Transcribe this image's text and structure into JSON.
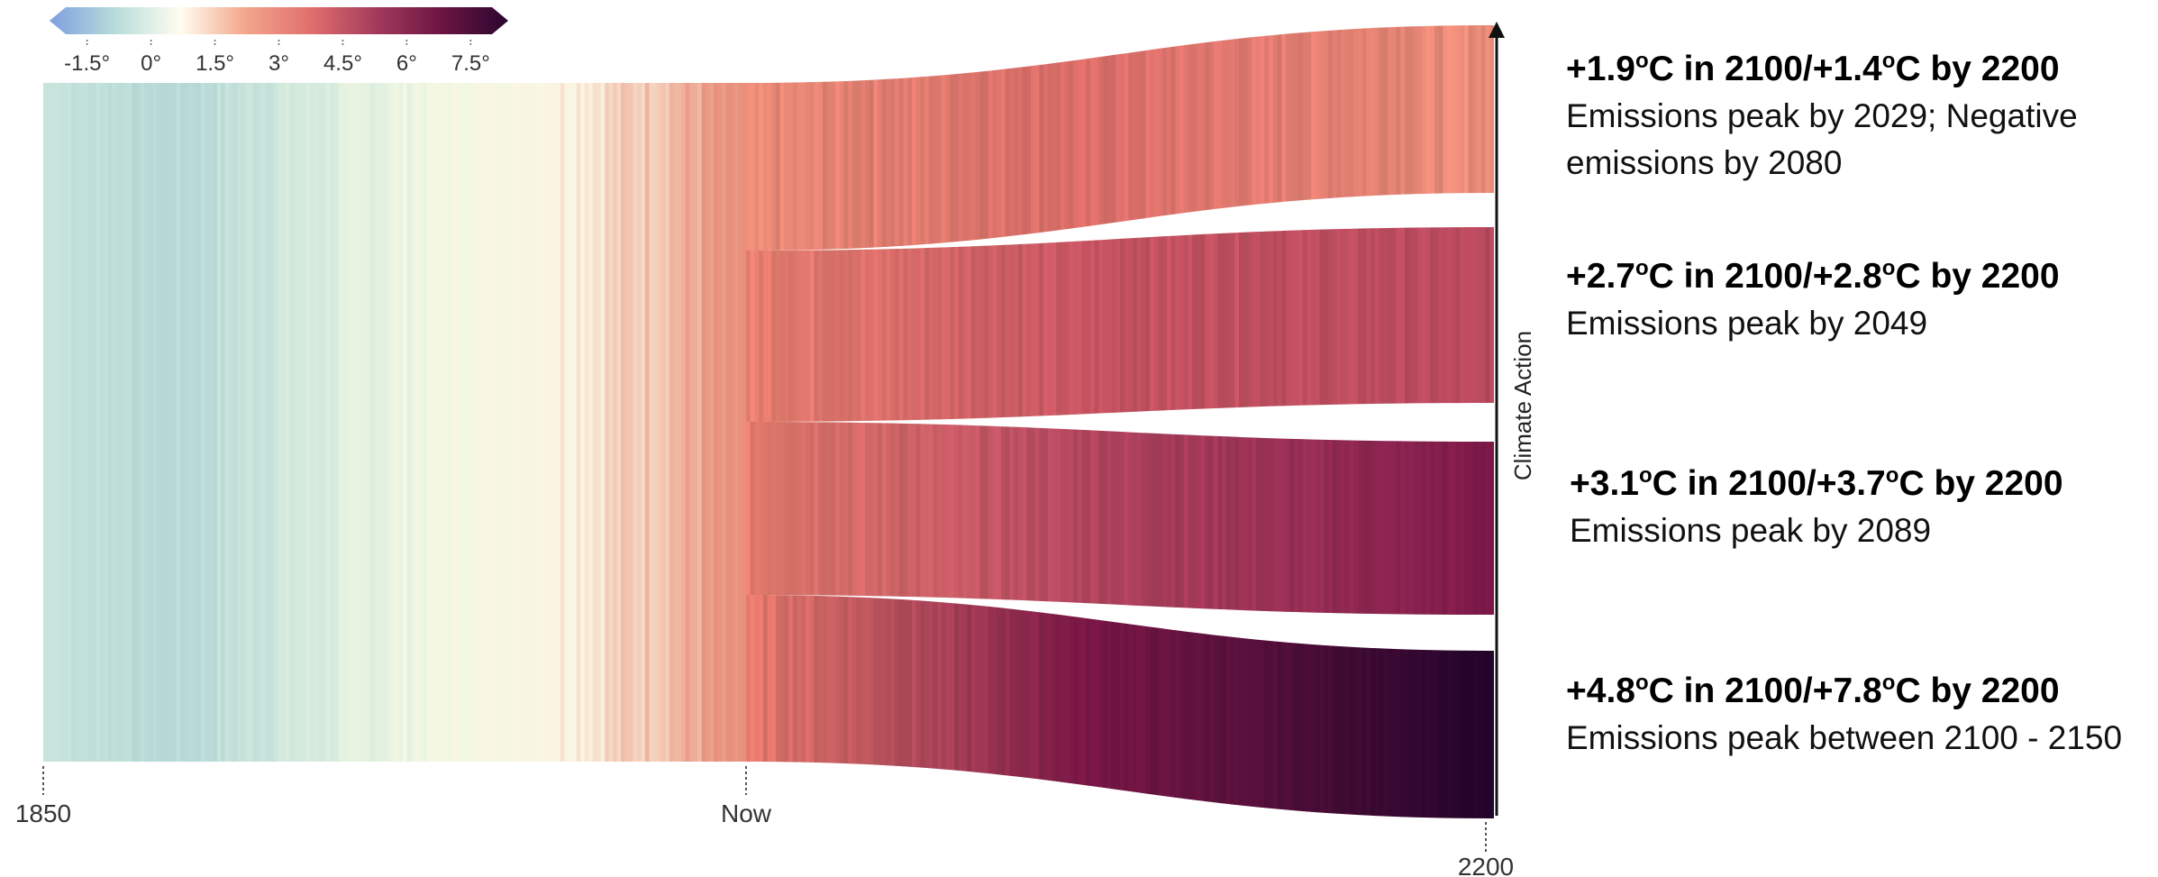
{
  "chart_data": {
    "type": "sankey-stripes",
    "colorbar": {
      "ticks": [
        "-1.5°",
        "0°",
        "1.5°",
        "3°",
        "4.5°",
        "6°",
        "7.5°"
      ],
      "tick_values": [
        -1.5,
        0,
        1.5,
        3,
        4.5,
        6,
        7.5
      ],
      "colors": [
        "#7d9fe0",
        "#b8dcda",
        "#fffdf0",
        "#f3a58a",
        "#e06e6e",
        "#a23a5c",
        "#6b1442",
        "#2a0630"
      ]
    },
    "x_axis": {
      "ticks": [
        "1850",
        "Now",
        "2200"
      ],
      "tick_values": [
        1850,
        2024,
        2200
      ]
    },
    "y_axis": {
      "label": "Climate Action"
    },
    "history": {
      "start": 1850,
      "end": 2024,
      "anomaly_start": -0.3,
      "anomaly_end": 1.3
    },
    "scenarios": [
      {
        "headline_a": "+1.9",
        "headline_b": "C in 2100/+1.4",
        "headline_c": "C by 2200",
        "description": "Emissions peak by 2029; Negative emissions by 2080",
        "temp_2100": 1.9,
        "temp_2200": 1.4,
        "color_start": "#e78a76",
        "color_mid": "#da6c68",
        "color_end": "#eb8e7a"
      },
      {
        "headline_a": "+2.7",
        "headline_b": "C in 2100/+2.8",
        "headline_c": "C by 2200",
        "description": "Emissions peak by 2049",
        "temp_2100": 2.7,
        "temp_2200": 2.8,
        "color_start": "#e88070",
        "color_mid": "#c65462",
        "color_end": "#b8495e"
      },
      {
        "headline_a": "+3.1",
        "headline_b": "C in 2100/+3.7",
        "headline_c": "C by 2200",
        "description": "Emissions peak by 2089",
        "temp_2100": 3.1,
        "temp_2200": 3.7,
        "color_start": "#e57c6d",
        "color_mid": "#b3465f",
        "color_end": "#7c1849"
      },
      {
        "headline_a": "+4.8",
        "headline_b": "C in 2100/+7.8",
        "headline_c": "C by 2200",
        "description": "Emissions peak between 2100 - 2150",
        "temp_2100": 4.8,
        "temp_2200": 7.8,
        "color_start": "#e57a6c",
        "color_mid": "#7a1746",
        "color_end": "#22042a"
      }
    ],
    "degree_symbol": "o"
  }
}
